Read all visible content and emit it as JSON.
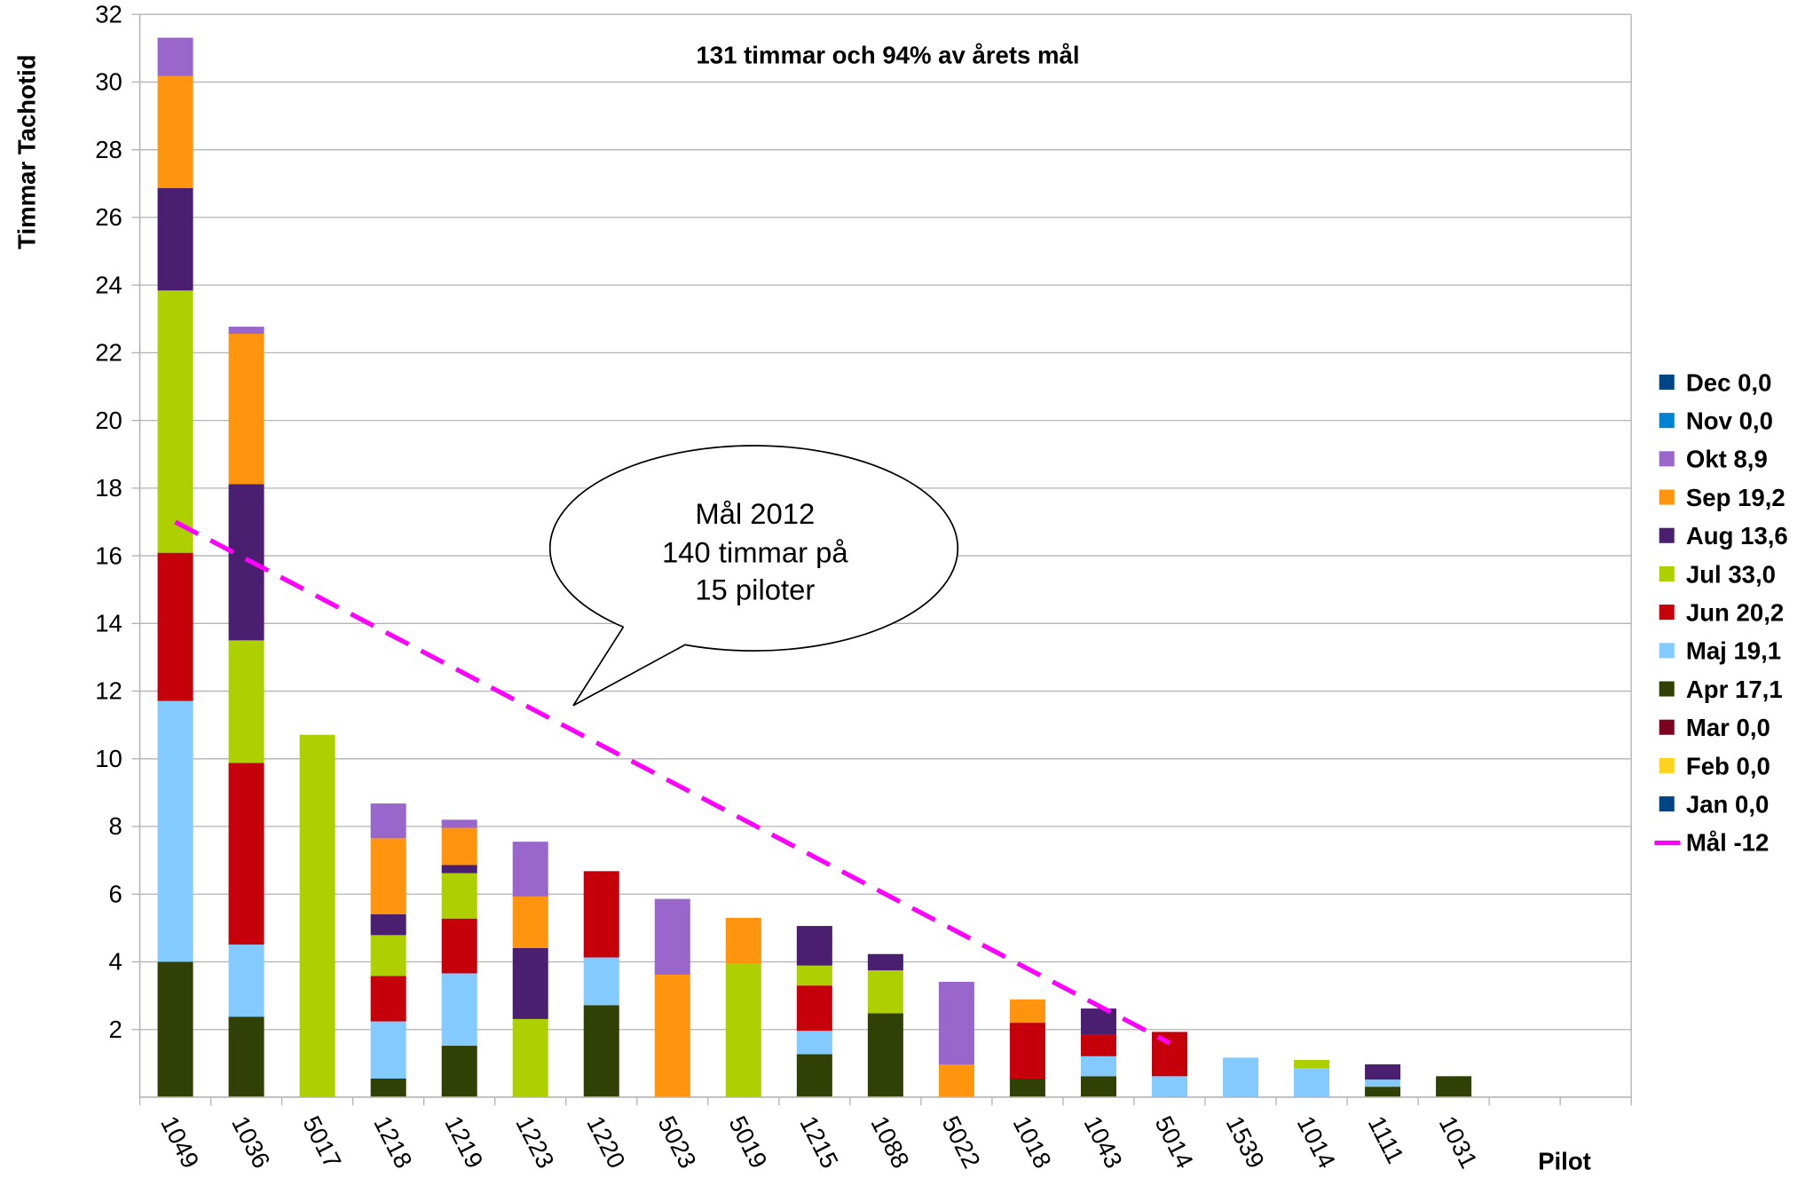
{
  "chart_data": {
    "type": "bar",
    "stacked": true,
    "title": "131 timmar och 94% av årets mål",
    "xlabel": "Pilot",
    "ylabel": "Timmar Tachotid",
    "ylim": [
      0,
      32
    ],
    "yticks": [
      2,
      4,
      6,
      8,
      10,
      12,
      14,
      16,
      18,
      20,
      22,
      24,
      26,
      28,
      30,
      32
    ],
    "grid": true,
    "legend_position": "right",
    "categories": [
      "1049",
      "1036",
      "5017",
      "1218",
      "1219",
      "1223",
      "1220",
      "5023",
      "5019",
      "1215",
      "1088",
      "5022",
      "1018",
      "1043",
      "5014",
      "1539",
      "1014",
      "1111",
      "1031",
      "",
      ""
    ],
    "series": [
      {
        "name": "Jan 0,0",
        "color": "#004586",
        "values": [
          0,
          0,
          0,
          0,
          0,
          0,
          0,
          0,
          0,
          0,
          0,
          0,
          0,
          0,
          0,
          0,
          0,
          0,
          0,
          0,
          0
        ]
      },
      {
        "name": "Feb 0,0",
        "color": "#ffd320",
        "values": [
          0,
          0,
          0,
          0,
          0,
          0,
          0,
          0,
          0,
          0,
          0,
          0,
          0,
          0,
          0,
          0,
          0,
          0,
          0,
          0,
          0
        ]
      },
      {
        "name": "Mar 0,0",
        "color": "#7e0021",
        "values": [
          0,
          0,
          0,
          0,
          0,
          0,
          0,
          0,
          0,
          0,
          0,
          0,
          0,
          0,
          0,
          0,
          0,
          0,
          0,
          0,
          0
        ]
      },
      {
        "name": "Apr 17,1",
        "color": "#314004",
        "values": [
          4.0,
          2.38,
          0,
          0.55,
          1.52,
          0,
          2.72,
          0,
          0,
          1.27,
          2.48,
          0,
          0.55,
          0.62,
          0,
          0,
          0,
          0.31,
          0.62,
          0,
          0
        ]
      },
      {
        "name": "Maj 19,1",
        "color": "#83caff",
        "values": [
          7.71,
          2.13,
          0,
          1.69,
          2.14,
          0,
          1.41,
          0,
          0,
          0.69,
          0,
          0,
          0,
          0.59,
          0.62,
          1.17,
          0.86,
          0.21,
          0,
          0,
          0
        ]
      },
      {
        "name": "Jun 20,2",
        "color": "#c5000b",
        "values": [
          4.38,
          5.37,
          0,
          1.34,
          1.62,
          0,
          2.55,
          0,
          0,
          1.34,
          0,
          0,
          1.65,
          0.65,
          1.31,
          0,
          0,
          0,
          0,
          0,
          0
        ]
      },
      {
        "name": "Jul 33,0",
        "color": "#aecf00",
        "values": [
          7.75,
          3.62,
          10.71,
          1.21,
          1.34,
          2.31,
          0,
          0,
          3.96,
          0.59,
          1.27,
          0,
          0,
          0,
          0,
          0,
          0.24,
          0,
          0,
          0,
          0
        ]
      },
      {
        "name": "Aug 13,6",
        "color": "#4b1f6f",
        "values": [
          3.03,
          4.62,
          0,
          0.62,
          0.24,
          2.1,
          0,
          0,
          0,
          1.17,
          0.48,
          0,
          0,
          0.76,
          0,
          0,
          0,
          0.45,
          0,
          0,
          0
        ]
      },
      {
        "name": "Sep 19,2",
        "color": "#ff950e",
        "values": [
          3.31,
          4.44,
          0,
          2.24,
          1.1,
          1.52,
          0,
          3.62,
          1.34,
          0,
          0,
          0.96,
          0.69,
          0,
          0,
          0,
          0,
          0,
          0,
          0,
          0
        ]
      },
      {
        "name": "Okt 8,9",
        "color": "#9966cc",
        "values": [
          1.13,
          0.21,
          0,
          1.03,
          0.24,
          1.62,
          0,
          2.24,
          0,
          0,
          0,
          2.45,
          0,
          0,
          0,
          0,
          0,
          0,
          0,
          0,
          0
        ]
      },
      {
        "name": "Nov 0,0",
        "color": "#0084d1",
        "values": [
          0,
          0,
          0,
          0,
          0,
          0,
          0,
          0,
          0,
          0,
          0,
          0,
          0,
          0,
          0,
          0,
          0,
          0,
          0,
          0,
          0
        ]
      },
      {
        "name": "Dec 0,0",
        "color": "#004586",
        "values": [
          0,
          0,
          0,
          0,
          0,
          0,
          0,
          0,
          0,
          0,
          0,
          0,
          0,
          0,
          0,
          0,
          0,
          0,
          0,
          0,
          0
        ]
      }
    ],
    "line_series": {
      "name": "Mål -12",
      "color": "#ff00ff",
      "style": "dashed",
      "values": [
        17.0,
        15.9,
        14.8,
        13.7,
        12.6,
        11.5,
        10.4,
        9.3,
        8.2,
        7.1,
        6.0,
        4.9,
        3.8,
        2.7,
        1.6,
        null,
        null,
        null,
        null,
        null,
        null
      ]
    },
    "callout": {
      "lines": [
        "Mål 2012",
        "140 timmar på",
        "15 piloter"
      ]
    }
  }
}
